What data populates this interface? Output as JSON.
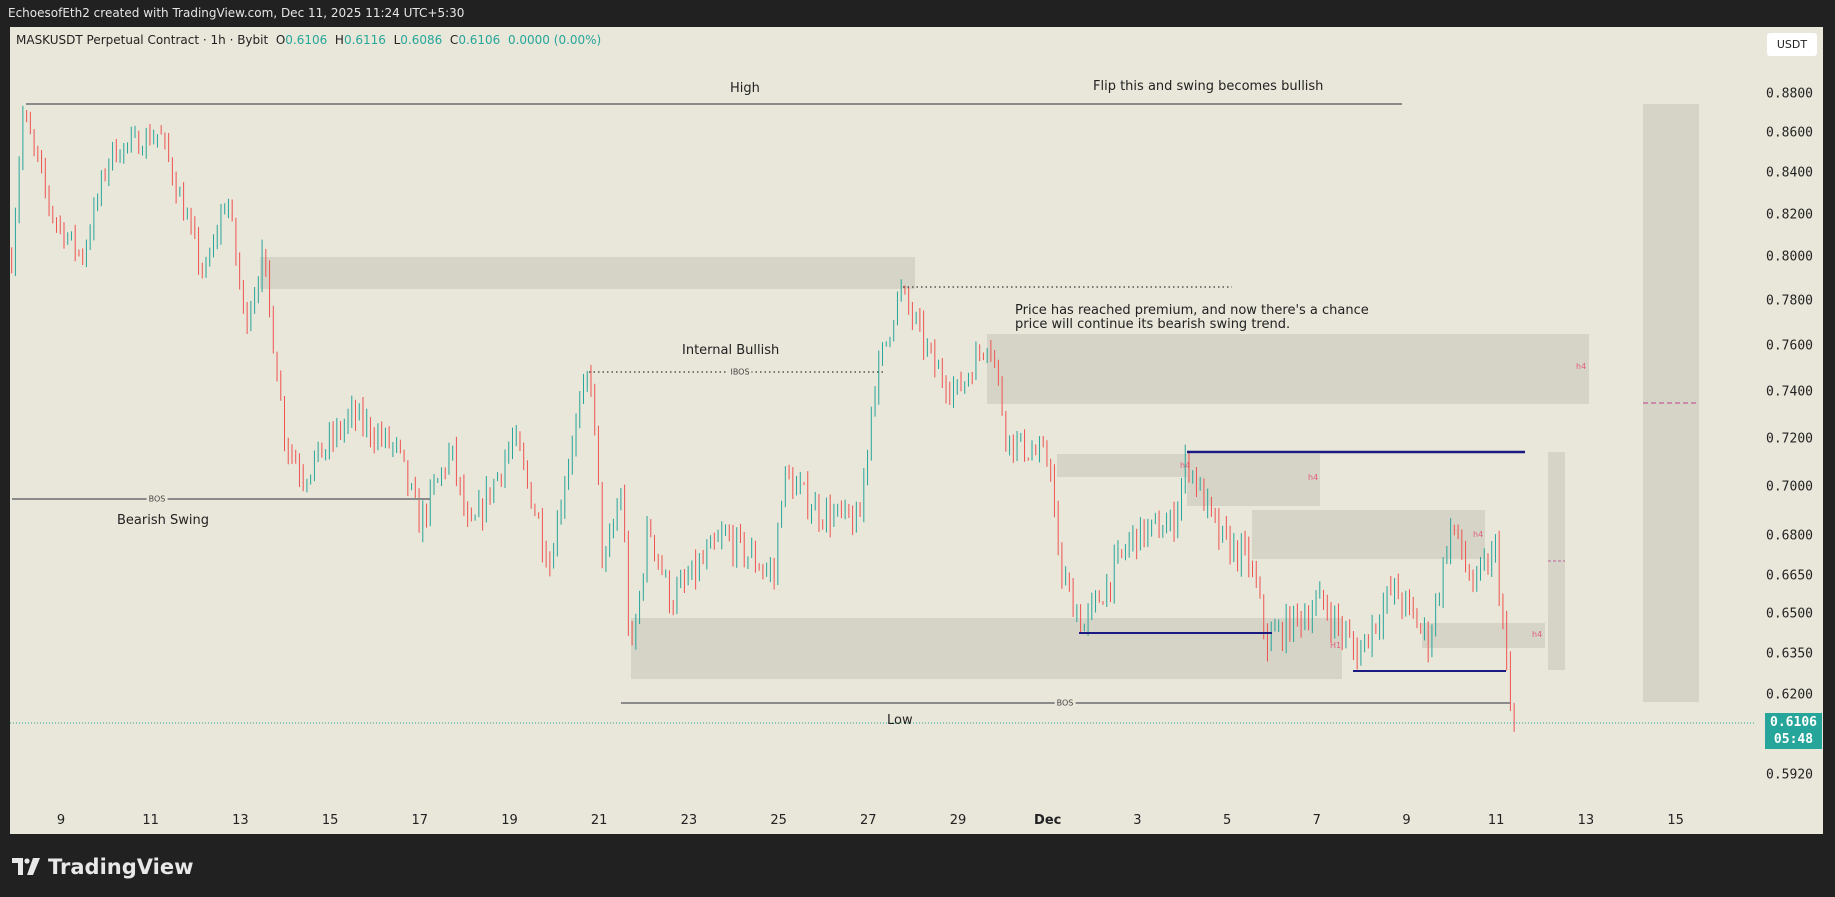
{
  "header": {
    "caption": "EchoesofEth2 created with TradingView.com, Dec 11, 2025 11:24 UTC+5:30"
  },
  "legend": {
    "symbol": "MASKUSDT Perpetual Contract · 1h · Bybit",
    "o_label": "O",
    "o": "0.6106",
    "h_label": "H",
    "h": "0.6116",
    "l_label": "L",
    "l": "0.6086",
    "c_label": "C",
    "c": "0.6106",
    "change": "0.0000 (0.00%)"
  },
  "currency": "USDT",
  "price_label": {
    "price": "0.6106",
    "countdown": "05:48"
  },
  "annotations": {
    "high": "High",
    "flip": "Flip this and swing becomes bullish",
    "internal_bullish": "Internal Bullish",
    "ibos": "IBOS",
    "bos_left": "BOS",
    "bearish_swing": "Bearish Swing",
    "premium_line1": "Price has reached premium, and now there's a chance",
    "premium_line2": "price will continue its bearish swing trend.",
    "bos_bottom": "BOS",
    "low": "Low",
    "h4": "h4",
    "h1": "H1"
  },
  "colors": {
    "up": "#26a69a",
    "down": "#ef5350",
    "structure": "#1a1a80",
    "background": "#e9e6da",
    "zone": "#d6d3c7"
  },
  "chart_data": {
    "type": "candlestick",
    "title": "MASKUSDT Perpetual Contract · 1h · Bybit",
    "y_ticks": [
      "0.8800",
      "0.8600",
      "0.8400",
      "0.8200",
      "0.8000",
      "0.7800",
      "0.7600",
      "0.7400",
      "0.7200",
      "0.7000",
      "0.6800",
      "0.6650",
      "0.6500",
      "0.6350",
      "0.6200",
      "0.5920"
    ],
    "x_ticks": [
      "9",
      "11",
      "13",
      "15",
      "17",
      "19",
      "21",
      "23",
      "25",
      "27",
      "29",
      "Dec",
      "3",
      "5",
      "7",
      "9",
      "11",
      "13",
      "15"
    ],
    "x_unit": "days since Nov 9",
    "approx_price_path": [
      [
        -1.1,
        0.8
      ],
      [
        -0.85,
        0.87
      ],
      [
        -0.2,
        0.82
      ],
      [
        0.47,
        0.8
      ],
      [
        1.1,
        0.85
      ],
      [
        2.2,
        0.86
      ],
      [
        3.2,
        0.79
      ],
      [
        3.7,
        0.83
      ],
      [
        4.1,
        0.77
      ],
      [
        4.5,
        0.8
      ],
      [
        5.0,
        0.72
      ],
      [
        5.4,
        0.705
      ],
      [
        6.5,
        0.73
      ],
      [
        7.5,
        0.715
      ],
      [
        8.0,
        0.685
      ],
      [
        8.7,
        0.715
      ],
      [
        9.1,
        0.68
      ],
      [
        10.1,
        0.72
      ],
      [
        10.9,
        0.67
      ],
      [
        11.4,
        0.72
      ],
      [
        11.8,
        0.75
      ],
      [
        12.1,
        0.665
      ],
      [
        12.5,
        0.7
      ],
      [
        12.7,
        0.63
      ],
      [
        13.1,
        0.685
      ],
      [
        13.6,
        0.655
      ],
      [
        14.8,
        0.68
      ],
      [
        15.9,
        0.665
      ],
      [
        16.1,
        0.705
      ],
      [
        16.9,
        0.69
      ],
      [
        17.8,
        0.685
      ],
      [
        18.1,
        0.74
      ],
      [
        18.7,
        0.785
      ],
      [
        19.5,
        0.75
      ],
      [
        20.0,
        0.74
      ],
      [
        20.7,
        0.765
      ],
      [
        21.1,
        0.72
      ],
      [
        22.1,
        0.71
      ],
      [
        22.2,
        0.67
      ],
      [
        22.8,
        0.645
      ],
      [
        23.9,
        0.68
      ],
      [
        24.8,
        0.685
      ],
      [
        25.1,
        0.712
      ],
      [
        25.8,
        0.68
      ],
      [
        26.5,
        0.67
      ],
      [
        26.9,
        0.64
      ],
      [
        28.1,
        0.655
      ],
      [
        28.9,
        0.635
      ],
      [
        29.7,
        0.66
      ],
      [
        30.5,
        0.64
      ],
      [
        31.0,
        0.685
      ],
      [
        31.5,
        0.66
      ],
      [
        32.0,
        0.675
      ],
      [
        32.3,
        0.615
      ],
      [
        32.4,
        0.6106
      ]
    ],
    "last_price": 0.6106
  },
  "footer": {
    "brand": "TradingView"
  }
}
